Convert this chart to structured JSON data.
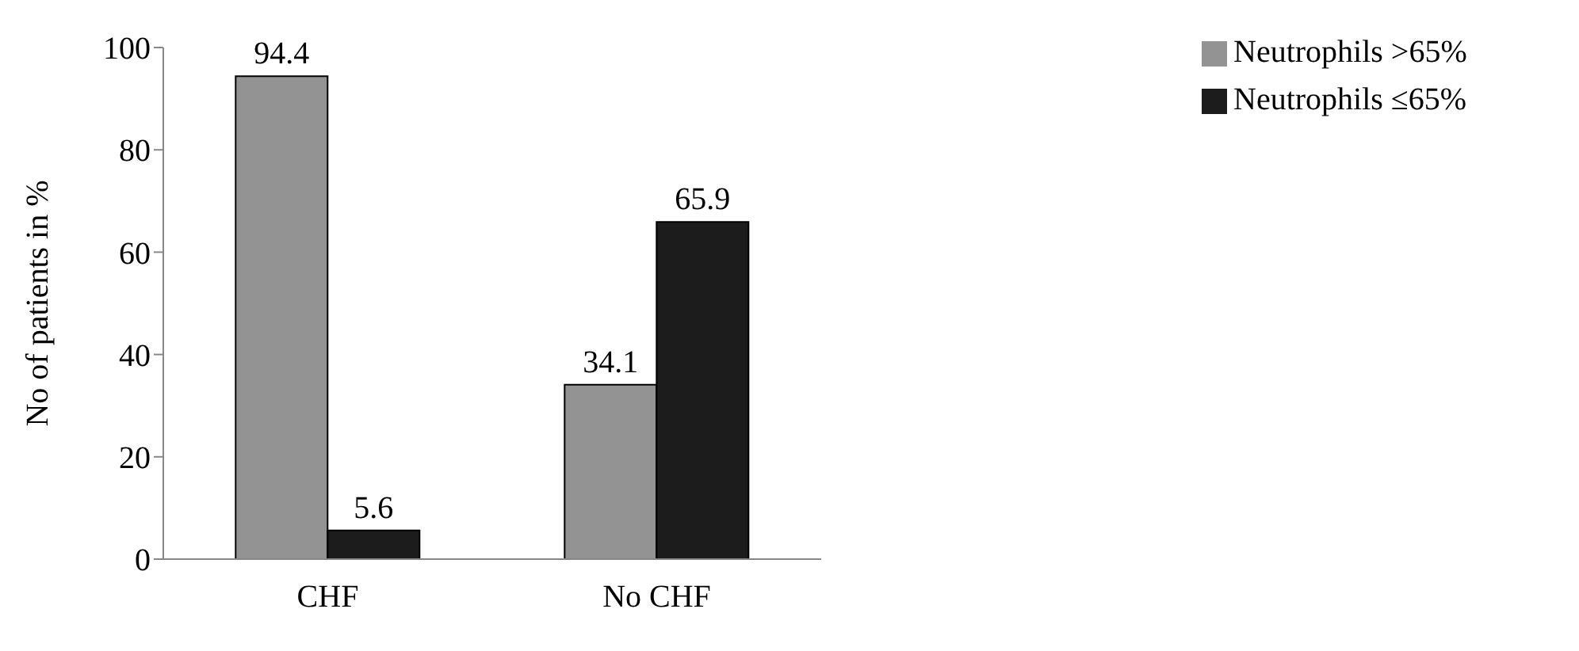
{
  "chart_data": {
    "type": "bar",
    "ylabel": "No of patients in %",
    "categories": [
      "CHF",
      "No CHF"
    ],
    "series": [
      {
        "name": "Neutrophils >65%",
        "color": "#939393",
        "values": [
          94.4,
          34.1
        ]
      },
      {
        "name": "Neutrophils ≤65%",
        "color": "#1c1c1c",
        "values": [
          5.6,
          65.9
        ]
      }
    ],
    "ylim": [
      0,
      100
    ],
    "yticks": [
      0,
      20,
      40,
      60,
      80,
      100
    ],
    "data_labels": true,
    "legend": "top right",
    "grid": false
  }
}
